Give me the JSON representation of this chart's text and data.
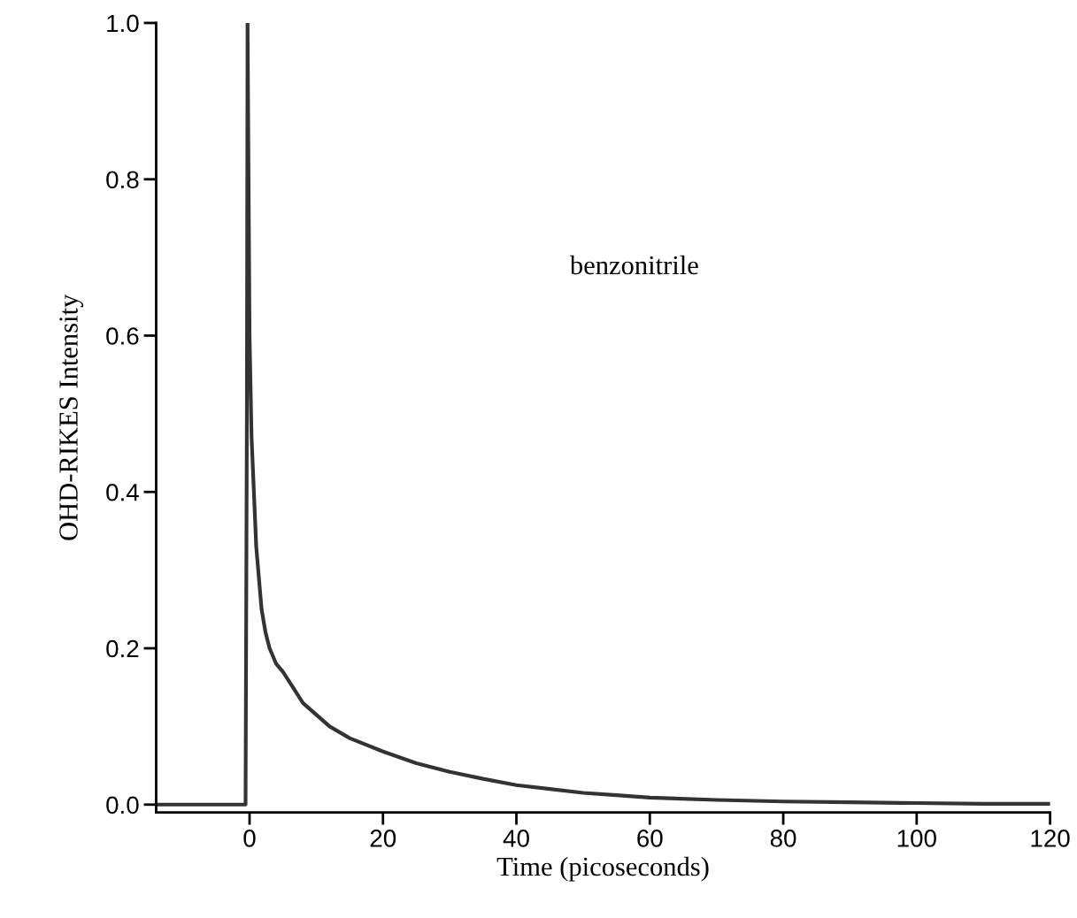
{
  "chart_data": {
    "type": "line",
    "xlabel": "Time (picoseconds)",
    "ylabel": "OHD-RIKES Intensity",
    "annotations": [
      "benzonitrile"
    ],
    "series": [
      {
        "color": "#333333",
        "x": [
          -14,
          -5,
          -0.6,
          -0.4,
          -0.3,
          0.0,
          0.3,
          0.7,
          1.0,
          1.4,
          1.8,
          2.4,
          3.0,
          4.0,
          5.0,
          6.5,
          8.0,
          10,
          12,
          15,
          20,
          25,
          30,
          35,
          40,
          45,
          50,
          55,
          60,
          70,
          80,
          90,
          100,
          110,
          120
        ],
        "values": [
          0.0,
          0.0,
          0.0,
          0.5,
          1.0,
          0.6,
          0.47,
          0.39,
          0.33,
          0.29,
          0.25,
          0.22,
          0.2,
          0.18,
          0.17,
          0.15,
          0.13,
          0.115,
          0.1,
          0.085,
          0.068,
          0.053,
          0.042,
          0.033,
          0.025,
          0.02,
          0.015,
          0.012,
          0.009,
          0.006,
          0.004,
          0.003,
          0.002,
          0.001,
          0.001
        ]
      }
    ],
    "xlim": [
      -14,
      120
    ],
    "ylim": [
      -0.01,
      1.0
    ],
    "xticks": [
      0,
      20,
      40,
      60,
      80,
      100,
      120
    ],
    "yticks": [
      {
        "value": 0.0,
        "label": "0.0"
      },
      0.2,
      0.4,
      0.6,
      0.8,
      {
        "value": 1.0,
        "label": "1.0"
      }
    ],
    "grid": false,
    "marker": "none",
    "line_style": "solid"
  }
}
